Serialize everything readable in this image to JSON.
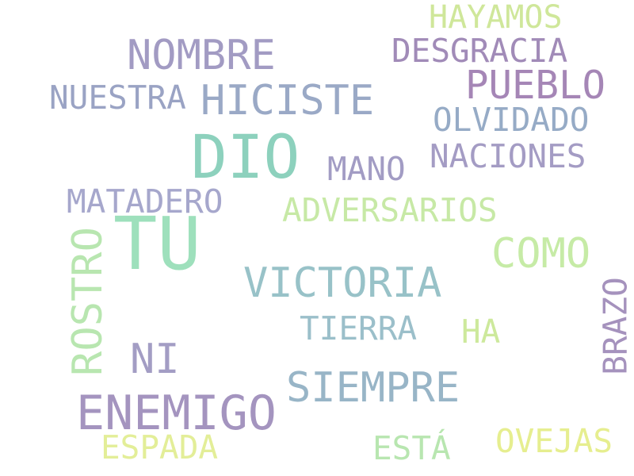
{
  "words": [
    {
      "id": "hayamos",
      "text": "HAYAMOS",
      "color": "#cfe79a"
    },
    {
      "id": "nombre",
      "text": "NOMBRE",
      "color": "#a29bc3"
    },
    {
      "id": "desgracia",
      "text": "DESGRACIA",
      "color": "#a18bb8"
    },
    {
      "id": "pueblo",
      "text": "PUEBLO",
      "color": "#a586b6"
    },
    {
      "id": "nuestra",
      "text": "NUESTRA",
      "color": "#9aa3c4"
    },
    {
      "id": "hiciste",
      "text": "HICISTE",
      "color": "#9aa9c6"
    },
    {
      "id": "olvidado",
      "text": "OLVIDADO",
      "color": "#96abc6"
    },
    {
      "id": "dio",
      "text": "DIO",
      "color": "#8dd1bd"
    },
    {
      "id": "mano",
      "text": "MANO",
      "color": "#a29cc4"
    },
    {
      "id": "naciones",
      "text": "NACIONES",
      "color": "#a49cc4"
    },
    {
      "id": "matadero",
      "text": "MATADERO",
      "color": "#a6a7cc"
    },
    {
      "id": "tu",
      "text": "TU",
      "color": "#9ee0bc"
    },
    {
      "id": "adversarios",
      "text": "ADVERSARIOS",
      "color": "#c7e9a6"
    },
    {
      "id": "como",
      "text": "COMO",
      "color": "#c6eba6"
    },
    {
      "id": "rostro",
      "text": "ROSTRO",
      "color": "#b8e6b0"
    },
    {
      "id": "victoria",
      "text": "VICTORIA",
      "color": "#98c2c8"
    },
    {
      "id": "tierra",
      "text": "TIERRA",
      "color": "#9bbfca"
    },
    {
      "id": "ha",
      "text": "HA",
      "color": "#cde99c"
    },
    {
      "id": "brazo",
      "text": "BRAZO",
      "color": "#a592bd"
    },
    {
      "id": "ni",
      "text": "NI",
      "color": "#a39dc4"
    },
    {
      "id": "siempre",
      "text": "SIEMPRE",
      "color": "#98b5c7"
    },
    {
      "id": "enemigo",
      "text": "ENEMIGO",
      "color": "#a494bf"
    },
    {
      "id": "espada",
      "text": "ESPADA",
      "color": "#e3ee98"
    },
    {
      "id": "esta",
      "text": "ESTÁ",
      "color": "#b8e6b0"
    },
    {
      "id": "ovejas",
      "text": "OVEJAS",
      "color": "#e6ee8f"
    }
  ]
}
